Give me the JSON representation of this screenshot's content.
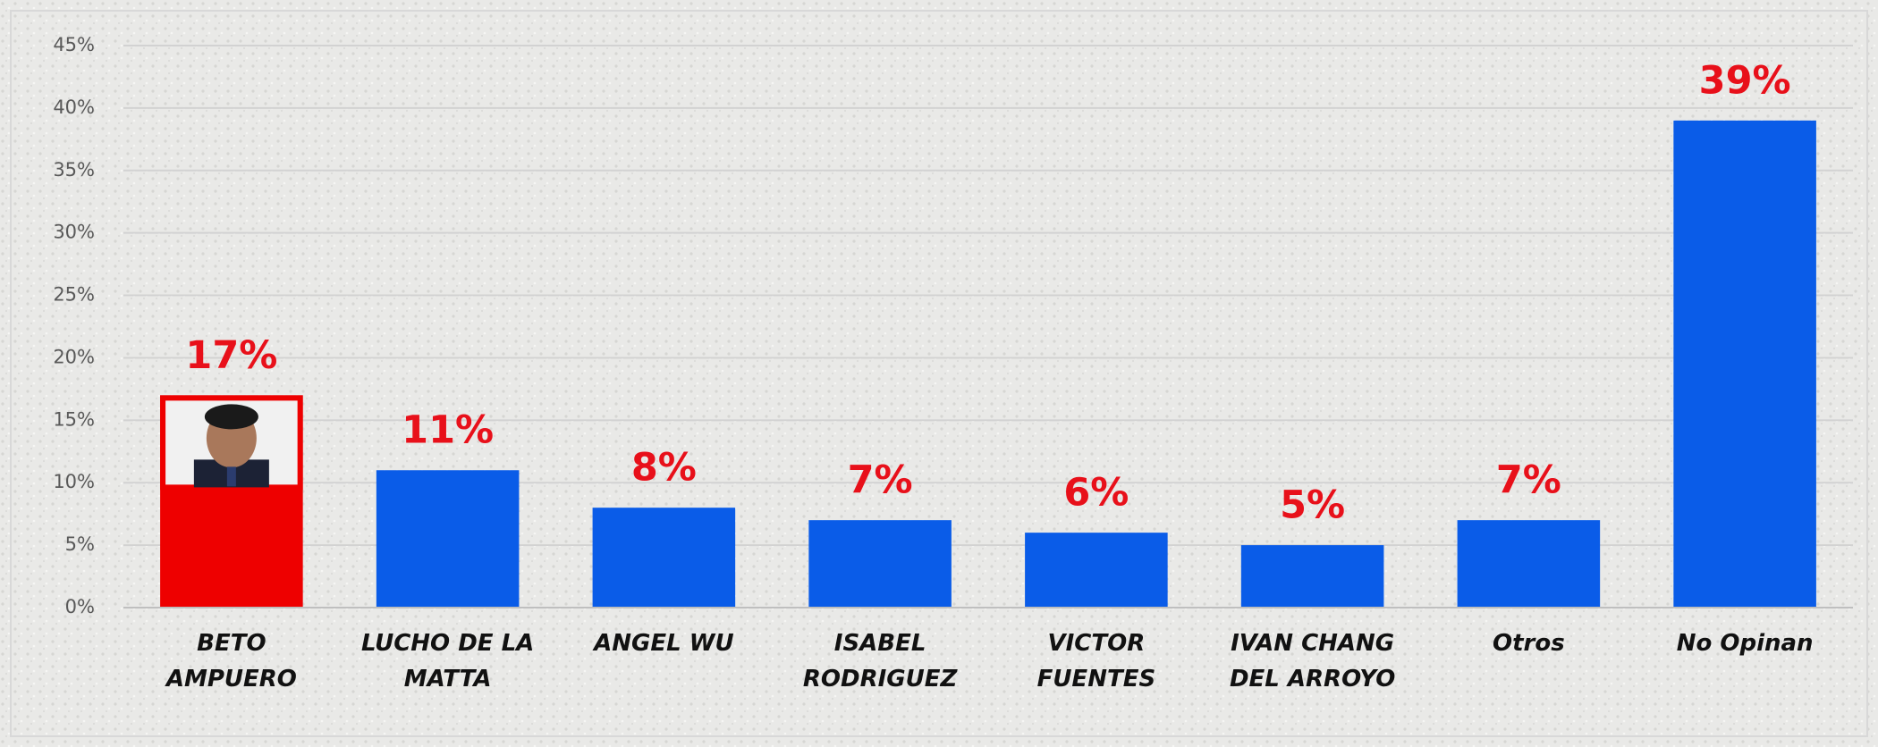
{
  "chart_data": {
    "type": "bar",
    "categories": [
      "BETO AMPUERO",
      "LUCHO DE LA MATTA",
      "ANGEL WU",
      "ISABEL RODRIGUEZ",
      "VICTOR FUENTES",
      "IVAN CHANG DEL ARROYO",
      "Otros",
      "No Opinan"
    ],
    "values": [
      17,
      11,
      8,
      7,
      6,
      5,
      7,
      39
    ],
    "value_labels": [
      "17%",
      "11%",
      "8%",
      "7%",
      "6%",
      "5%",
      "7%",
      "39%"
    ],
    "colors": [
      "#ee0000",
      "#0a5ce8",
      "#0a5ce8",
      "#0a5ce8",
      "#0a5ce8",
      "#0a5ce8",
      "#0a5ce8",
      "#0a5ce8"
    ],
    "ylim": [
      0,
      45
    ],
    "yticks": [
      {
        "value": 0,
        "label": "0%"
      },
      {
        "value": 5,
        "label": "5%"
      },
      {
        "value": 10,
        "label": "10%"
      },
      {
        "value": 15,
        "label": "15%"
      },
      {
        "value": 20,
        "label": "20%"
      },
      {
        "value": 25,
        "label": "25%"
      },
      {
        "value": 30,
        "label": "30%"
      },
      {
        "value": 35,
        "label": "35%"
      },
      {
        "value": 40,
        "label": "40%"
      },
      {
        "value": 45,
        "label": "45%"
      }
    ],
    "grid": true
  }
}
